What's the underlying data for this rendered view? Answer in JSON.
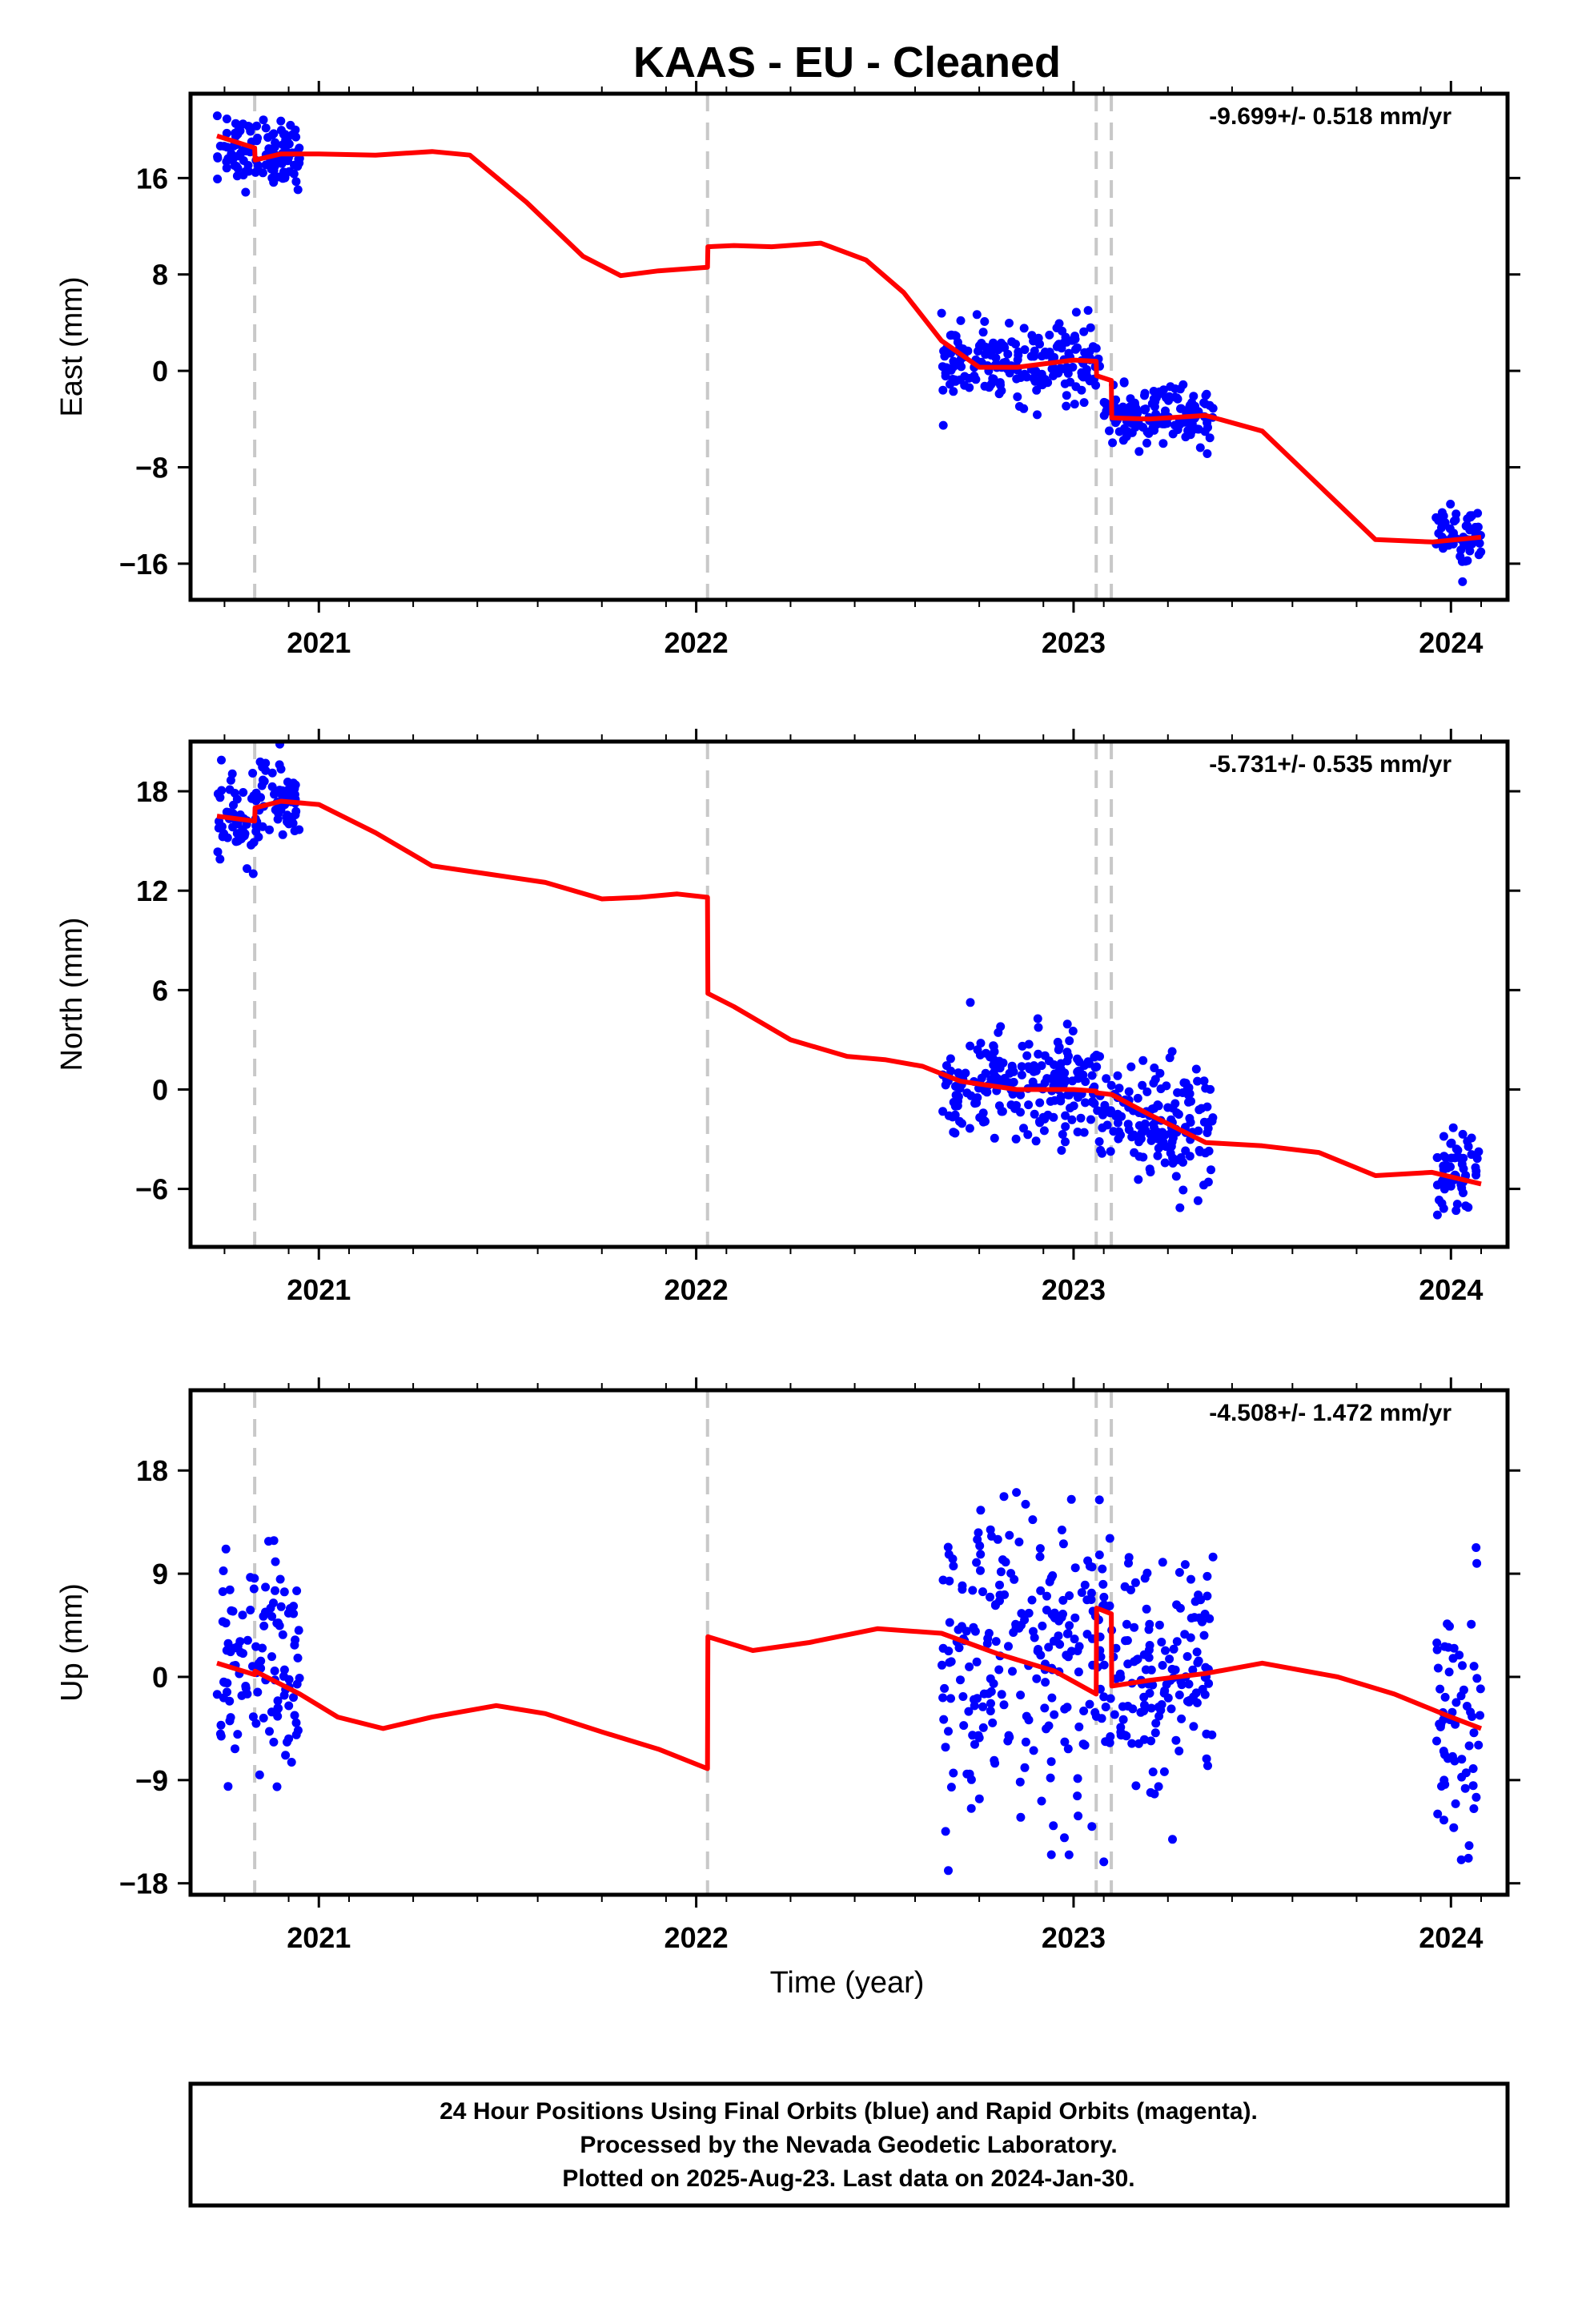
{
  "title": "KAAS  - EU - Cleaned",
  "xlabel": "Time (year)",
  "footer": {
    "line1": "24 Hour Positions Using Final Orbits (blue) and Rapid Orbits (magenta).",
    "line2": "Processed by the Nevada Geodetic Laboratory.",
    "line3": "Plotted on 2025-Aug-23. Last data on 2024-Jan-30."
  },
  "colors": {
    "data": "#0000ff",
    "model": "#ff0000",
    "offset_lines": "#c8c8c8",
    "frame": "#000000"
  },
  "chart_data": [
    {
      "type": "scatter",
      "panel": "east",
      "ylabel": "East (mm)",
      "rate_label": "-9.699+/- 0.518 mm/yr",
      "xlim": [
        2020.66,
        2024.15
      ],
      "ylim": [
        -19,
        23
      ],
      "yticks": [
        -16,
        -8,
        0,
        8,
        16
      ],
      "xticks": [
        2021,
        2022,
        2023,
        2024
      ],
      "offset_epochs": [
        2020.83,
        2022.03,
        2023.06,
        2023.1
      ],
      "data_segments": [
        {
          "x0": 2020.73,
          "x1": 2020.95,
          "center": 18.2,
          "spread": 1.4
        },
        {
          "x0": 2022.65,
          "x1": 2023.07,
          "center": 0.7,
          "spread": 1.5
        },
        {
          "x0": 2023.08,
          "x1": 2023.37,
          "center": -3.8,
          "spread": 1.2
        },
        {
          "x0": 2023.96,
          "x1": 2024.08,
          "center": -13.8,
          "spread": 1.3
        }
      ],
      "model": {
        "x": [
          2020.73,
          2020.83,
          2020.831,
          2020.9,
          2021.0,
          2021.15,
          2021.3,
          2021.4,
          2021.55,
          2021.7,
          2021.8,
          2021.9,
          2022.03,
          2022.031,
          2022.1,
          2022.2,
          2022.33,
          2022.45,
          2022.55,
          2022.65,
          2022.75,
          2022.85,
          2023.0,
          2023.06,
          2023.061,
          2023.1,
          2023.101,
          2023.2,
          2023.35,
          2023.5,
          2023.65,
          2023.8,
          2023.95,
          2024.08
        ],
        "y": [
          19.5,
          18.5,
          17.5,
          18.0,
          18.0,
          17.9,
          18.2,
          17.9,
          14.0,
          9.5,
          7.9,
          8.3,
          8.6,
          10.3,
          10.4,
          10.3,
          10.6,
          9.2,
          6.5,
          2.5,
          0.3,
          0.3,
          0.9,
          0.8,
          -0.4,
          -0.8,
          -3.9,
          -4.0,
          -3.7,
          -5.0,
          -9.5,
          -14.0,
          -14.2,
          -13.8
        ]
      }
    },
    {
      "type": "scatter",
      "panel": "north",
      "ylabel": "North (mm)",
      "rate_label": "-5.731+/- 0.535 mm/yr",
      "xlim": [
        2020.66,
        2024.15
      ],
      "ylim": [
        -9.5,
        21
      ],
      "yticks": [
        -6,
        0,
        6,
        12,
        18
      ],
      "xticks": [
        2021,
        2022,
        2023,
        2024
      ],
      "offset_epochs": [
        2020.83,
        2022.03,
        2023.06,
        2023.1
      ],
      "data_segments": [
        {
          "x0": 2020.73,
          "x1": 2020.84,
          "center": 16.2,
          "spread": 1.2
        },
        {
          "x0": 2020.84,
          "x1": 2020.95,
          "center": 17.6,
          "spread": 1.3
        },
        {
          "x0": 2022.65,
          "x1": 2023.07,
          "center": 0.2,
          "spread": 1.6
        },
        {
          "x0": 2023.07,
          "x1": 2023.37,
          "center": -2.0,
          "spread": 1.8
        },
        {
          "x0": 2023.96,
          "x1": 2024.08,
          "center": -5.2,
          "spread": 1.3
        }
      ],
      "model": {
        "x": [
          2020.73,
          2020.83,
          2020.831,
          2020.9,
          2021.0,
          2021.15,
          2021.3,
          2021.45,
          2021.6,
          2021.75,
          2021.85,
          2021.95,
          2022.03,
          2022.031,
          2022.1,
          2022.25,
          2022.4,
          2022.5,
          2022.6,
          2022.7,
          2022.85,
          2023.0,
          2023.06,
          2023.061,
          2023.1,
          2023.101,
          2023.2,
          2023.35,
          2023.5,
          2023.65,
          2023.8,
          2023.95,
          2024.08
        ],
        "y": [
          16.5,
          16.2,
          17.0,
          17.4,
          17.2,
          15.5,
          13.5,
          13.0,
          12.5,
          11.5,
          11.6,
          11.8,
          11.6,
          5.8,
          5.0,
          3.0,
          2.0,
          1.8,
          1.4,
          0.5,
          0.0,
          0.0,
          -0.1,
          -0.2,
          -0.3,
          -0.3,
          -1.5,
          -3.2,
          -3.4,
          -3.8,
          -5.2,
          -5.0,
          -5.7
        ]
      }
    },
    {
      "type": "scatter",
      "panel": "up",
      "ylabel": "Up (mm)",
      "rate_label": "-4.508+/- 1.472 mm/yr",
      "xlim": [
        2020.66,
        2024.15
      ],
      "ylim": [
        -19,
        25
      ],
      "yticks": [
        -18,
        -9,
        0,
        9,
        18
      ],
      "xticks": [
        2021,
        2022,
        2023,
        2024
      ],
      "offset_epochs": [
        2020.83,
        2022.03,
        2023.06,
        2023.1
      ],
      "data_segments": [
        {
          "x0": 2020.73,
          "x1": 2020.95,
          "center": 0.5,
          "spread": 5.0
        },
        {
          "x0": 2022.65,
          "x1": 2023.07,
          "center": 1.5,
          "spread": 6.5
        },
        {
          "x0": 2023.07,
          "x1": 2023.37,
          "center": 0.5,
          "spread": 5.0
        },
        {
          "x0": 2023.96,
          "x1": 2024.08,
          "center": -3.0,
          "spread": 5.5
        }
      ],
      "model": {
        "x": [
          2020.73,
          2020.83,
          2020.831,
          2020.95,
          2021.05,
          2021.17,
          2021.3,
          2021.47,
          2021.6,
          2021.75,
          2021.9,
          2022.03,
          2022.031,
          2022.15,
          2022.3,
          2022.48,
          2022.65,
          2022.8,
          2022.95,
          2023.06,
          2023.061,
          2023.1,
          2023.101,
          2023.2,
          2023.35,
          2023.5,
          2023.7,
          2023.85,
          2024.0,
          2024.08
        ],
        "y": [
          1.2,
          0.2,
          0.5,
          -1.5,
          -3.5,
          -4.5,
          -3.5,
          -2.5,
          -3.2,
          -4.8,
          -6.3,
          -8.0,
          3.5,
          2.3,
          3.0,
          4.2,
          3.8,
          2.0,
          0.5,
          -1.5,
          6.0,
          5.5,
          -0.8,
          -0.3,
          0.3,
          1.2,
          0.0,
          -1.5,
          -3.5,
          -4.5
        ]
      }
    }
  ]
}
